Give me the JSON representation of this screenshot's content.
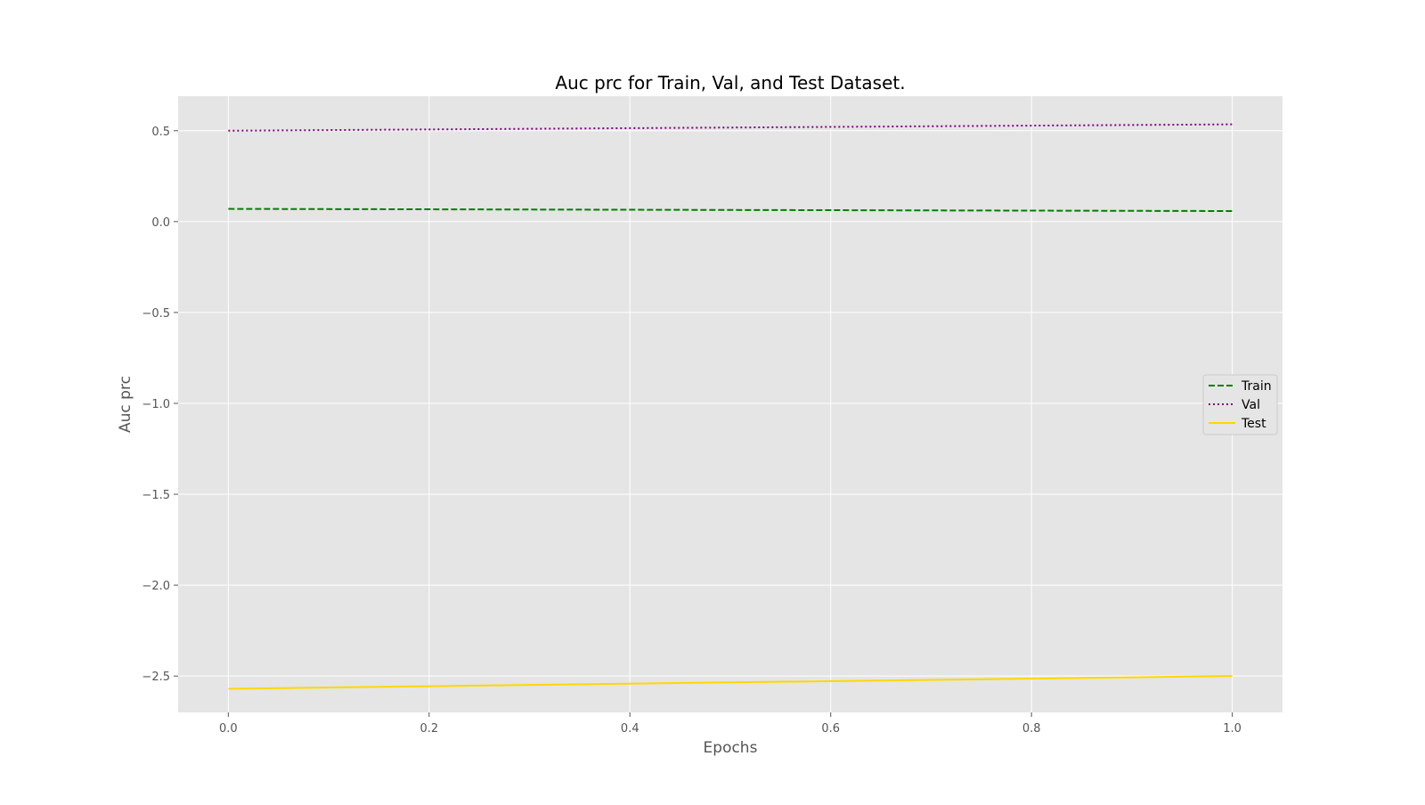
{
  "chart_data": {
    "type": "line",
    "title": "Auc prc for Train, Val, and Test Dataset.",
    "xlabel": "Epochs",
    "ylabel": "Auc prc",
    "x": [
      0,
      1
    ],
    "xlim": [
      -0.05,
      1.05
    ],
    "ylim": [
      -2.7,
      0.69
    ],
    "xticks": [
      0.0,
      0.2,
      0.4,
      0.6,
      0.8,
      1.0
    ],
    "xtick_labels": [
      "0.0",
      "0.2",
      "0.4",
      "0.6",
      "0.8",
      "1.0"
    ],
    "yticks": [
      0.5,
      0.0,
      -0.5,
      -1.0,
      -1.5,
      -2.0,
      -2.5
    ],
    "ytick_labels": [
      "0.5",
      "0.0",
      "−0.5",
      "−1.0",
      "−1.5",
      "−2.0",
      "−2.5"
    ],
    "grid": true,
    "style": "ggplot",
    "legend_position": "center-right",
    "background_color": "#e5e5e5",
    "series": [
      {
        "name": "Train",
        "values": [
          0.07,
          0.058
        ],
        "color": "#008000",
        "linestyle": "dashed"
      },
      {
        "name": "Val",
        "values": [
          0.5,
          0.535
        ],
        "color": "#800080",
        "linestyle": "dotted"
      },
      {
        "name": "Test",
        "values": [
          -2.57,
          -2.5
        ],
        "color": "#ffd700",
        "linestyle": "solid"
      }
    ]
  }
}
